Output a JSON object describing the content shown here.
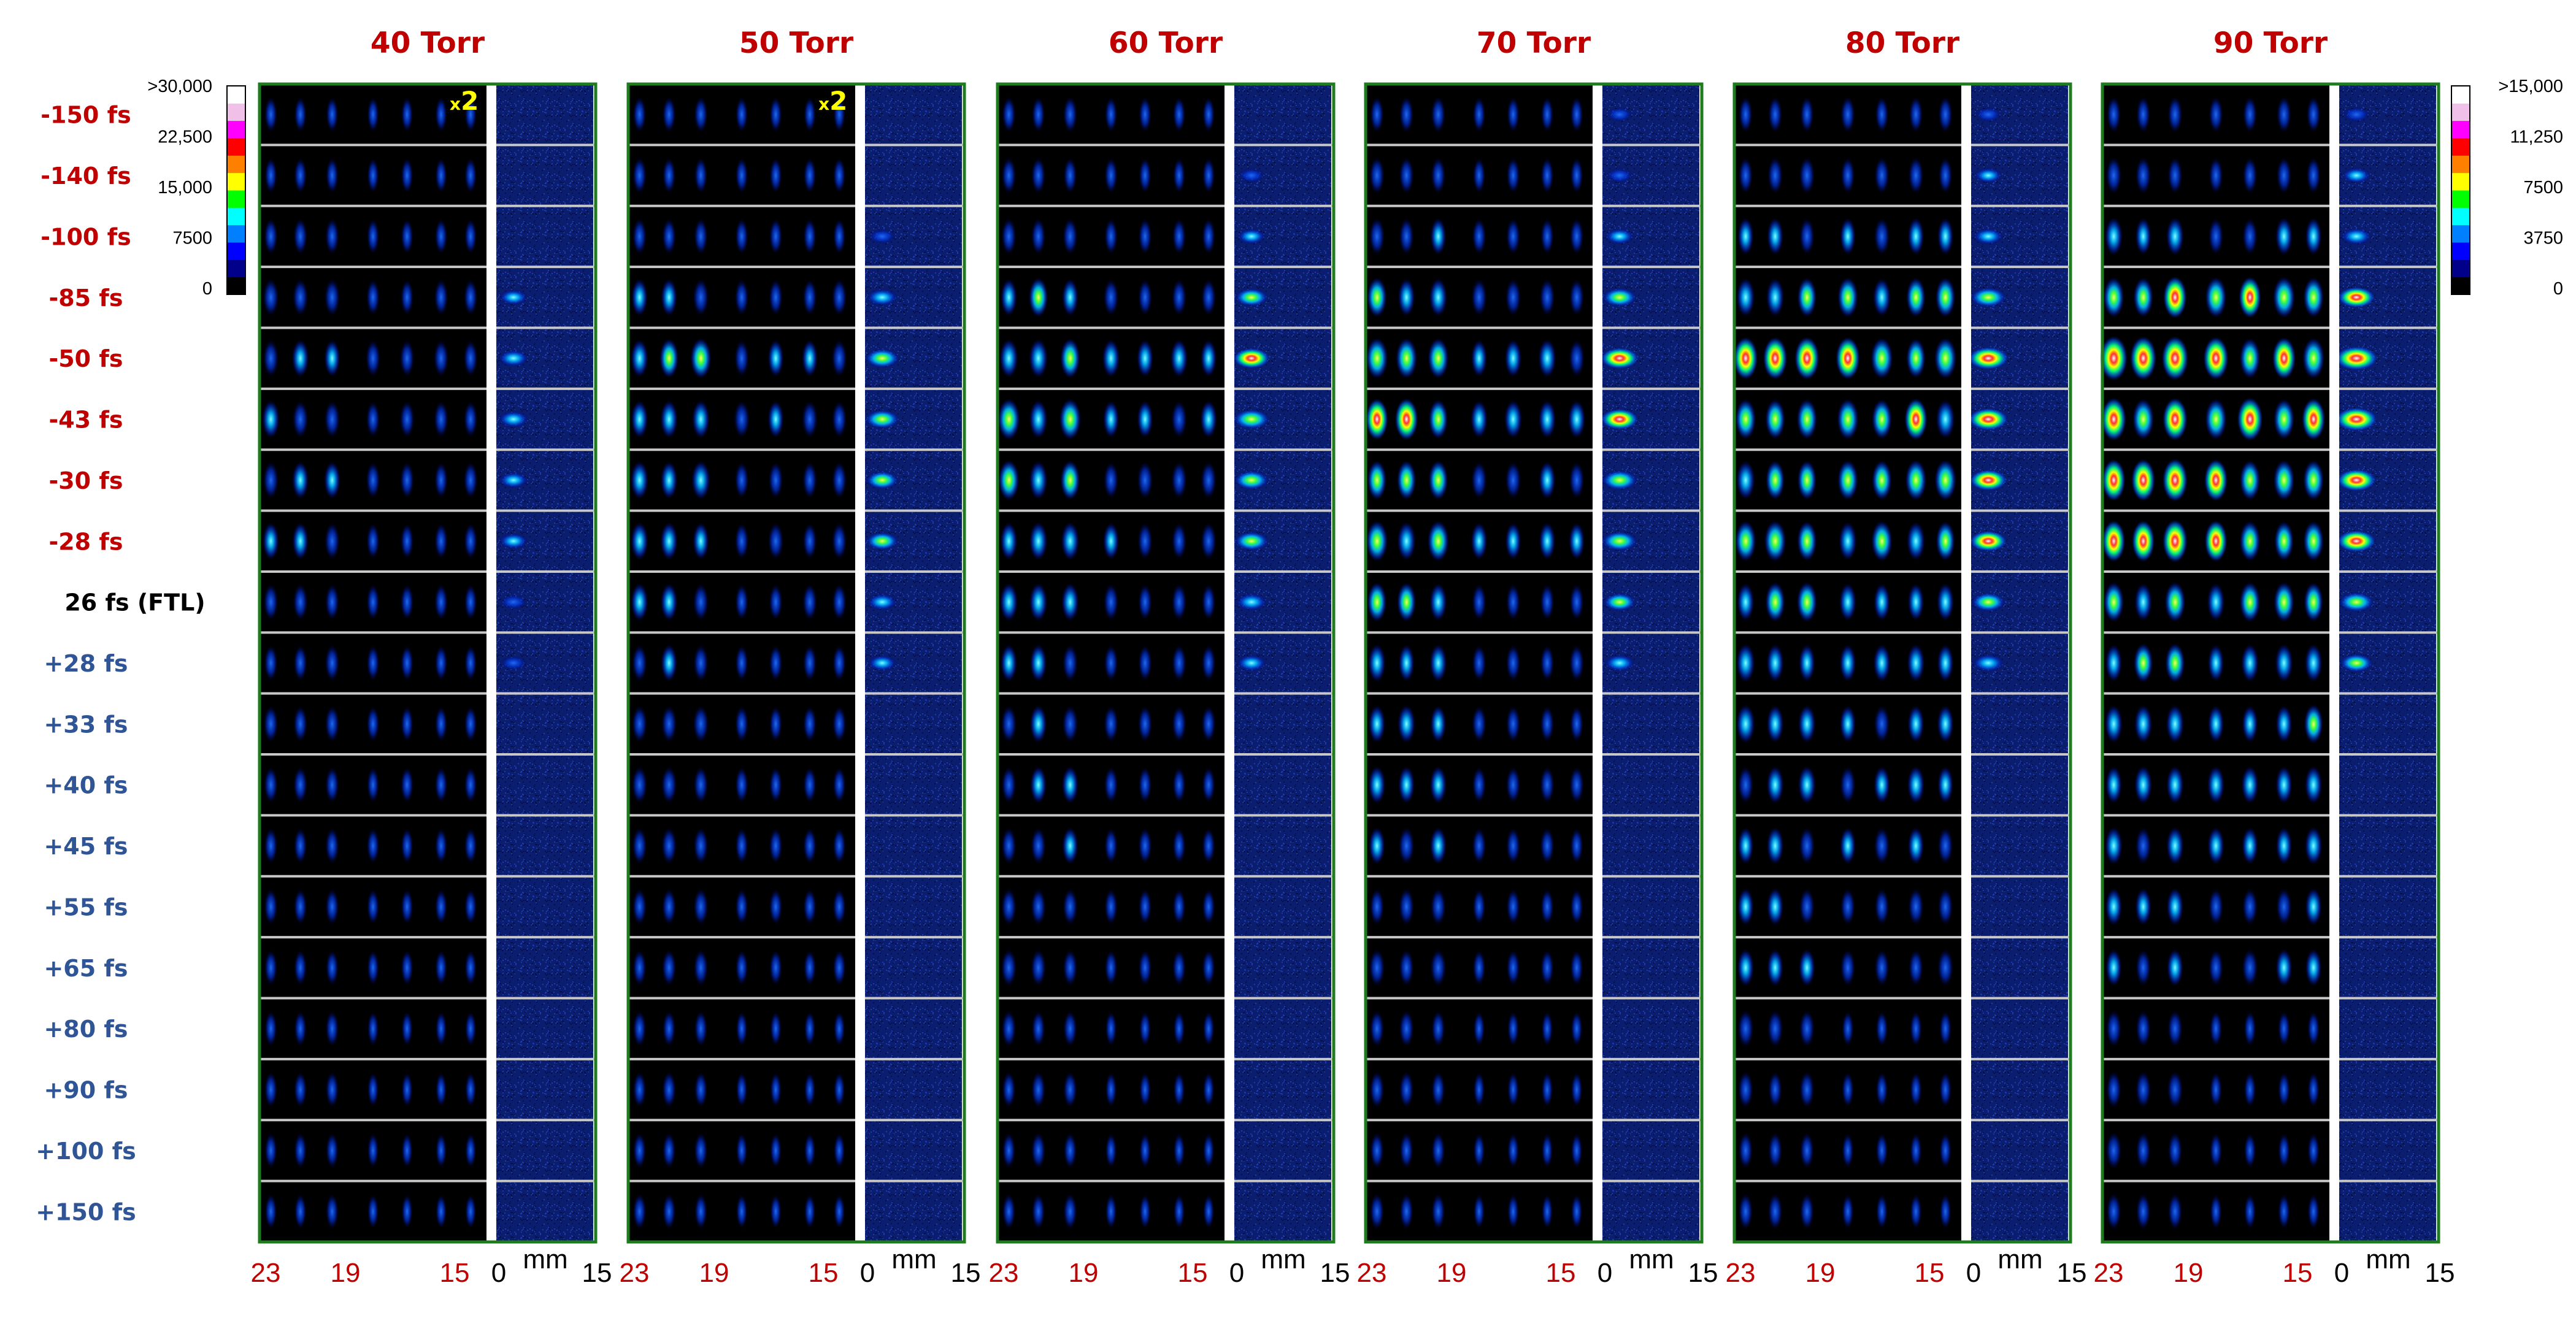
{
  "panels": [
    {
      "title": "40 Torr",
      "intensity": 0.55,
      "x2": true
    },
    {
      "title": "50 Torr",
      "intensity": 0.8,
      "x2": true
    },
    {
      "title": "60 Torr",
      "intensity": 0.95,
      "x2": false
    },
    {
      "title": "70 Torr",
      "intensity": 1.05,
      "x2": false
    },
    {
      "title": "80 Torr",
      "intensity": 1.2,
      "x2": false
    },
    {
      "title": "90 Torr",
      "intensity": 1.35,
      "x2": false
    }
  ],
  "x2_label": {
    "prefix": "x",
    "number": "2"
  },
  "delays": [
    {
      "label": "-150 fs",
      "sign": "neg"
    },
    {
      "label": "-140 fs",
      "sign": "neg"
    },
    {
      "label": "-100 fs",
      "sign": "neg"
    },
    {
      "label": "-85 fs",
      "sign": "neg"
    },
    {
      "label": "-50 fs",
      "sign": "neg"
    },
    {
      "label": "-43 fs",
      "sign": "neg"
    },
    {
      "label": "-30 fs",
      "sign": "neg"
    },
    {
      "label": "-28 fs",
      "sign": "neg"
    },
    {
      "label": "26 fs (FTL)",
      "sign": "ftl"
    },
    {
      "label": "+28 fs",
      "sign": "pos"
    },
    {
      "label": "+33 fs",
      "sign": "pos"
    },
    {
      "label": "+40 fs",
      "sign": "pos"
    },
    {
      "label": "+45 fs",
      "sign": "pos"
    },
    {
      "label": "+55 fs",
      "sign": "pos"
    },
    {
      "label": "+65 fs",
      "sign": "pos"
    },
    {
      "label": "+80 fs",
      "sign": "pos"
    },
    {
      "label": "+90 fs",
      "sign": "pos"
    },
    {
      "label": "+100 fs",
      "sign": "pos"
    },
    {
      "label": "+150 fs",
      "sign": "pos"
    }
  ],
  "x_axis": {
    "left_ticks": [
      "23",
      "19",
      "15"
    ],
    "right_ticks": [
      "0",
      "15"
    ],
    "unit": "mm"
  },
  "colorbars": [
    {
      "side": "left",
      "ticks": [
        ">30,000",
        "22,500",
        "15,000",
        "7500",
        "0"
      ]
    },
    {
      "side": "right",
      "ticks": [
        ">15,000",
        "11,250",
        "7500",
        "3750",
        "0"
      ]
    }
  ],
  "colors": {
    "panel_border": "#1e7b1e",
    "background": "#000000",
    "spectrum_background": "#0a1d6e",
    "row_separator": "#c8c8c8",
    "title": "#c00000",
    "negative_delay": "#c00000",
    "positive_delay": "#2f5597"
  },
  "colorscale": [
    "#000000",
    "#00008b",
    "#0000ff",
    "#0080ff",
    "#00ffff",
    "#00ff00",
    "#ffff00",
    "#ff8000",
    "#ff0000",
    "#ff00ff",
    "#f0c0e8",
    "#ffffff"
  ]
}
